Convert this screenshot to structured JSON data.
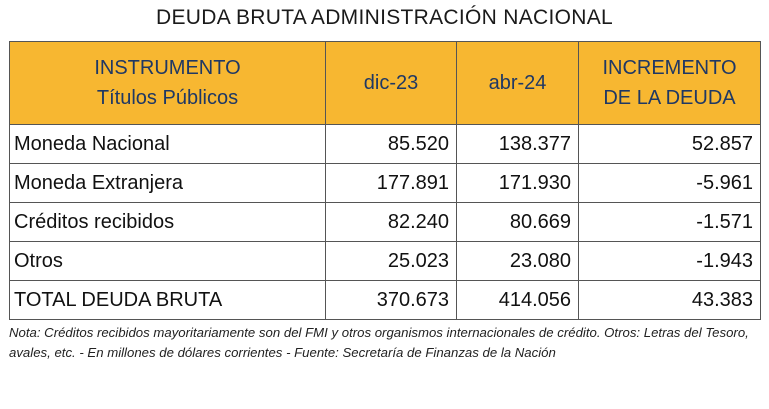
{
  "title": "DEUDA BRUTA ADMINISTRACIÓN NACIONAL",
  "table": {
    "header": {
      "col1_line1": "INSTRUMENTO",
      "col1_line2": "Títulos Públicos",
      "col2": "dic-23",
      "col3": "abr-24",
      "col4_line1": "INCREMENTO",
      "col4_line2": "DE LA DEUDA"
    },
    "rows": [
      {
        "label": "Moneda Nacional",
        "dic23": "85.520",
        "abr24": "138.377",
        "incremento": "52.857"
      },
      {
        "label": "Moneda Extranjera",
        "dic23": "177.891",
        "abr24": "171.930",
        "incremento": "-5.961"
      },
      {
        "label": "Créditos recibidos",
        "dic23": "82.240",
        "abr24": "80.669",
        "incremento": "-1.571"
      },
      {
        "label": "Otros",
        "dic23": "25.023",
        "abr24": "23.080",
        "incremento": "-1.943"
      },
      {
        "label": "TOTAL DEUDA BRUTA",
        "dic23": "370.673",
        "abr24": "414.056",
        "incremento": "43.383"
      }
    ],
    "header_color": "#f7b731",
    "header_text_color": "#1f3864"
  },
  "note": "Nota: Créditos recibidos mayoritariamente son del FMI y otros organismos internacionales de crédito. Otros: Letras del Tesoro, avales, etc. - En millones de dólares corrientes - Fuente: Secretaría de Finanzas de la Nación"
}
